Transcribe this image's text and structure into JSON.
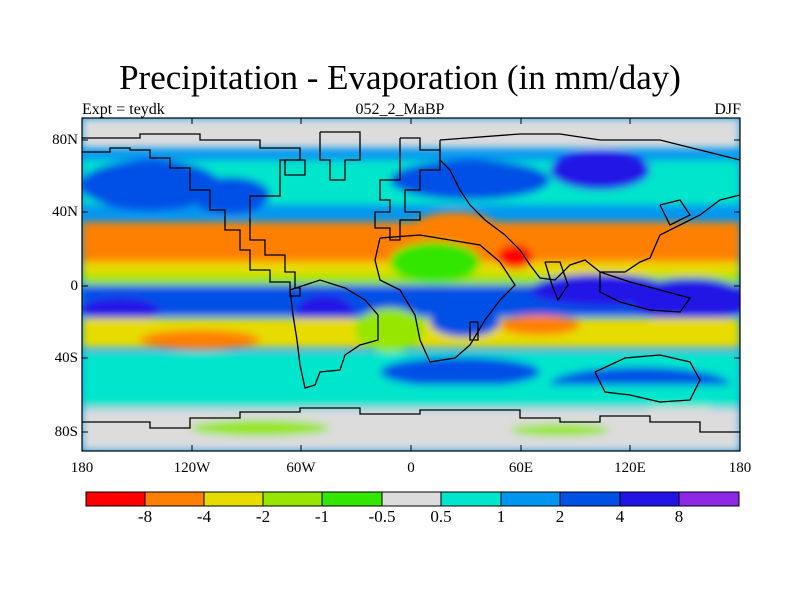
{
  "title": "Precipitation - Evaporation (in mm/day)",
  "left_string": "Expt = teydk",
  "center_string": "052_2_MaBP",
  "right_string": "DJF",
  "map": {
    "lon_range": [
      -180,
      180
    ],
    "lat_range": [
      -90,
      90
    ],
    "x_ticks": [
      "180",
      "120W",
      "60W",
      "0",
      "60E",
      "120E",
      "180"
    ],
    "y_ticks": [
      "80N",
      "40N",
      "0",
      "40S",
      "80S"
    ],
    "missing_color": "#dcdcdc"
  },
  "colorbar": {
    "colors": [
      "#ff0000",
      "#ff8000",
      "#e6dc00",
      "#96e600",
      "#32e600",
      "#dcdcdc",
      "#00e6cc",
      "#0096f0",
      "#0050e6",
      "#2314e6",
      "#8c28e6"
    ],
    "labels": [
      "-8",
      "-4",
      "-2",
      "-1",
      "-0.5",
      "0.5",
      "1",
      "2",
      "4",
      "8"
    ]
  }
}
